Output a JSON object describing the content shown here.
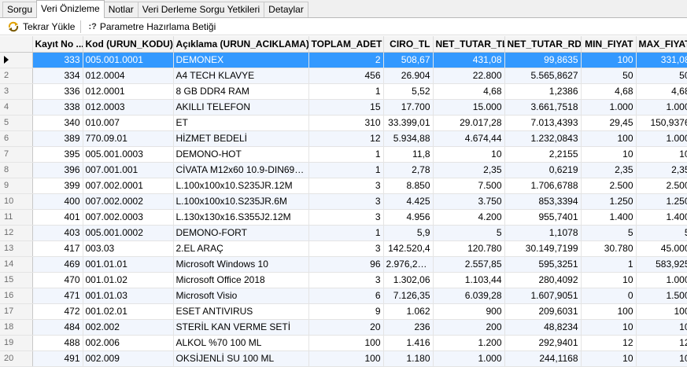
{
  "tabs": [
    {
      "label": "Sorgu",
      "active": false
    },
    {
      "label": "Veri Önizleme",
      "active": true
    },
    {
      "label": "Notlar",
      "active": false
    },
    {
      "label": "Veri Derleme Sorgu Yetkileri",
      "active": false
    },
    {
      "label": "Detaylar",
      "active": false
    }
  ],
  "toolbar": {
    "reload_label": "Tekrar Yükle",
    "param_icon": ":?",
    "param_label": "Parametre Hazırlama Betiği"
  },
  "columns": [
    {
      "key": "kayit",
      "label": "Kayıt No ...",
      "numeric": true,
      "width": 64
    },
    {
      "key": "kod",
      "label": "Kod (URUN_KODU)",
      "numeric": false,
      "width": 115
    },
    {
      "key": "aciklama",
      "label": "Açıklama (URUN_ACIKLAMA)",
      "numeric": false,
      "width": 172
    },
    {
      "key": "toplam_adet",
      "label": "TOPLAM_ADET",
      "numeric": true,
      "width": 95
    },
    {
      "key": "ciro_tl",
      "label": "CIRO_TL",
      "numeric": true,
      "width": 63
    },
    {
      "key": "net_tutar_tl",
      "label": "NET_TUTAR_TL",
      "numeric": true,
      "width": 91
    },
    {
      "key": "net_tutar_rd",
      "label": "NET_TUTAR_RD",
      "numeric": true,
      "width": 97
    },
    {
      "key": "min_fiyat",
      "label": "MIN_FIYAT",
      "numeric": true,
      "width": 70
    },
    {
      "key": "max_fiyat",
      "label": "MAX_FIYAT",
      "numeric": true,
      "width": 72
    }
  ],
  "rows": [
    {
      "n": "1",
      "kayit": "333",
      "kod": "005.001.0001",
      "aciklama": "DEMONEX",
      "toplam_adet": "2",
      "ciro_tl": "508,67",
      "net_tutar_tl": "431,08",
      "net_tutar_rd": "99,8635",
      "min_fiyat": "100",
      "max_fiyat": "331,08"
    },
    {
      "n": "2",
      "kayit": "334",
      "kod": "012.0004",
      "aciklama": "A4 TECH KLAVYE",
      "toplam_adet": "456",
      "ciro_tl": "26.904",
      "net_tutar_tl": "22.800",
      "net_tutar_rd": "5.565,8627",
      "min_fiyat": "50",
      "max_fiyat": "50"
    },
    {
      "n": "3",
      "kayit": "336",
      "kod": "012.0001",
      "aciklama": "8 GB DDR4 RAM",
      "toplam_adet": "1",
      "ciro_tl": "5,52",
      "net_tutar_tl": "4,68",
      "net_tutar_rd": "1,2386",
      "min_fiyat": "4,68",
      "max_fiyat": "4,68"
    },
    {
      "n": "4",
      "kayit": "338",
      "kod": "012.0003",
      "aciklama": "AKILLI TELEFON",
      "toplam_adet": "15",
      "ciro_tl": "17.700",
      "net_tutar_tl": "15.000",
      "net_tutar_rd": "3.661,7518",
      "min_fiyat": "1.000",
      "max_fiyat": "1.000"
    },
    {
      "n": "5",
      "kayit": "340",
      "kod": "010.007",
      "aciklama": "ET",
      "toplam_adet": "310",
      "ciro_tl": "33.399,01",
      "net_tutar_tl": "29.017,28",
      "net_tutar_rd": "7.013,4393",
      "min_fiyat": "29,45",
      "max_fiyat": "150,9376"
    },
    {
      "n": "6",
      "kayit": "389",
      "kod": "770.09.01",
      "aciklama": "HİZMET BEDELİ",
      "toplam_adet": "12",
      "ciro_tl": "5.934,88",
      "net_tutar_tl": "4.674,44",
      "net_tutar_rd": "1.232,0843",
      "min_fiyat": "100",
      "max_fiyat": "1.000"
    },
    {
      "n": "7",
      "kayit": "395",
      "kod": "005.001.0003",
      "aciklama": "DEMONO-HOT",
      "toplam_adet": "1",
      "ciro_tl": "11,8",
      "net_tutar_tl": "10",
      "net_tutar_rd": "2,2155",
      "min_fiyat": "10",
      "max_fiyat": "10"
    },
    {
      "n": "8",
      "kayit": "396",
      "kod": "007.001.001",
      "aciklama": "CİVATA M12x60 10.9-DIN6916...",
      "toplam_adet": "1",
      "ciro_tl": "2,78",
      "net_tutar_tl": "2,35",
      "net_tutar_rd": "0,6219",
      "min_fiyat": "2,35",
      "max_fiyat": "2,35"
    },
    {
      "n": "9",
      "kayit": "399",
      "kod": "007.002.0001",
      "aciklama": "L.100x100x10.S235JR.12M",
      "toplam_adet": "3",
      "ciro_tl": "8.850",
      "net_tutar_tl": "7.500",
      "net_tutar_rd": "1.706,6788",
      "min_fiyat": "2.500",
      "max_fiyat": "2.500"
    },
    {
      "n": "10",
      "kayit": "400",
      "kod": "007.002.0002",
      "aciklama": "L.100x100x10.S235JR.6M",
      "toplam_adet": "3",
      "ciro_tl": "4.425",
      "net_tutar_tl": "3.750",
      "net_tutar_rd": "853,3394",
      "min_fiyat": "1.250",
      "max_fiyat": "1.250"
    },
    {
      "n": "11",
      "kayit": "401",
      "kod": "007.002.0003",
      "aciklama": "L.130x130x16.S355J2.12M",
      "toplam_adet": "3",
      "ciro_tl": "4.956",
      "net_tutar_tl": "4.200",
      "net_tutar_rd": "955,7401",
      "min_fiyat": "1.400",
      "max_fiyat": "1.400"
    },
    {
      "n": "12",
      "kayit": "403",
      "kod": "005.001.0002",
      "aciklama": "DEMONO-FORT",
      "toplam_adet": "1",
      "ciro_tl": "5,9",
      "net_tutar_tl": "5",
      "net_tutar_rd": "1,1078",
      "min_fiyat": "5",
      "max_fiyat": "5"
    },
    {
      "n": "13",
      "kayit": "417",
      "kod": "003.03",
      "aciklama": "2.EL ARAÇ",
      "toplam_adet": "3",
      "ciro_tl": "142.520,4",
      "net_tutar_tl": "120.780",
      "net_tutar_rd": "30.149,7199",
      "min_fiyat": "30.780",
      "max_fiyat": "45.000"
    },
    {
      "n": "14",
      "kayit": "469",
      "kod": "001.01.01",
      "aciklama": "Microsoft Windows 10",
      "toplam_adet": "96",
      "ciro_tl": "2.976,2204",
      "net_tutar_tl": "2.557,85",
      "net_tutar_rd": "595,3251",
      "min_fiyat": "1",
      "max_fiyat": "583,925"
    },
    {
      "n": "15",
      "kayit": "470",
      "kod": "001.01.02",
      "aciklama": "Microsoft Office 2018",
      "toplam_adet": "3",
      "ciro_tl": "1.302,06",
      "net_tutar_tl": "1.103,44",
      "net_tutar_rd": "280,4092",
      "min_fiyat": "10",
      "max_fiyat": "1.000"
    },
    {
      "n": "16",
      "kayit": "471",
      "kod": "001.01.03",
      "aciklama": "Microsoft Visio",
      "toplam_adet": "6",
      "ciro_tl": "7.126,35",
      "net_tutar_tl": "6.039,28",
      "net_tutar_rd": "1.607,9051",
      "min_fiyat": "0",
      "max_fiyat": "1.500"
    },
    {
      "n": "17",
      "kayit": "472",
      "kod": "001.02.01",
      "aciklama": "ESET ANTIVIRUS",
      "toplam_adet": "9",
      "ciro_tl": "1.062",
      "net_tutar_tl": "900",
      "net_tutar_rd": "209,6031",
      "min_fiyat": "100",
      "max_fiyat": "100"
    },
    {
      "n": "18",
      "kayit": "484",
      "kod": "002.002",
      "aciklama": "STERİL KAN VERME SETİ",
      "toplam_adet": "20",
      "ciro_tl": "236",
      "net_tutar_tl": "200",
      "net_tutar_rd": "48,8234",
      "min_fiyat": "10",
      "max_fiyat": "10"
    },
    {
      "n": "19",
      "kayit": "488",
      "kod": "002.006",
      "aciklama": "ALKOL %70 100 ML",
      "toplam_adet": "100",
      "ciro_tl": "1.416",
      "net_tutar_tl": "1.200",
      "net_tutar_rd": "292,9401",
      "min_fiyat": "12",
      "max_fiyat": "12"
    },
    {
      "n": "20",
      "kayit": "491",
      "kod": "002.009",
      "aciklama": "OKSİJENLİ SU 100 ML",
      "toplam_adet": "100",
      "ciro_tl": "1.180",
      "net_tutar_tl": "1.000",
      "net_tutar_rd": "244,1168",
      "min_fiyat": "10",
      "max_fiyat": "10"
    }
  ]
}
